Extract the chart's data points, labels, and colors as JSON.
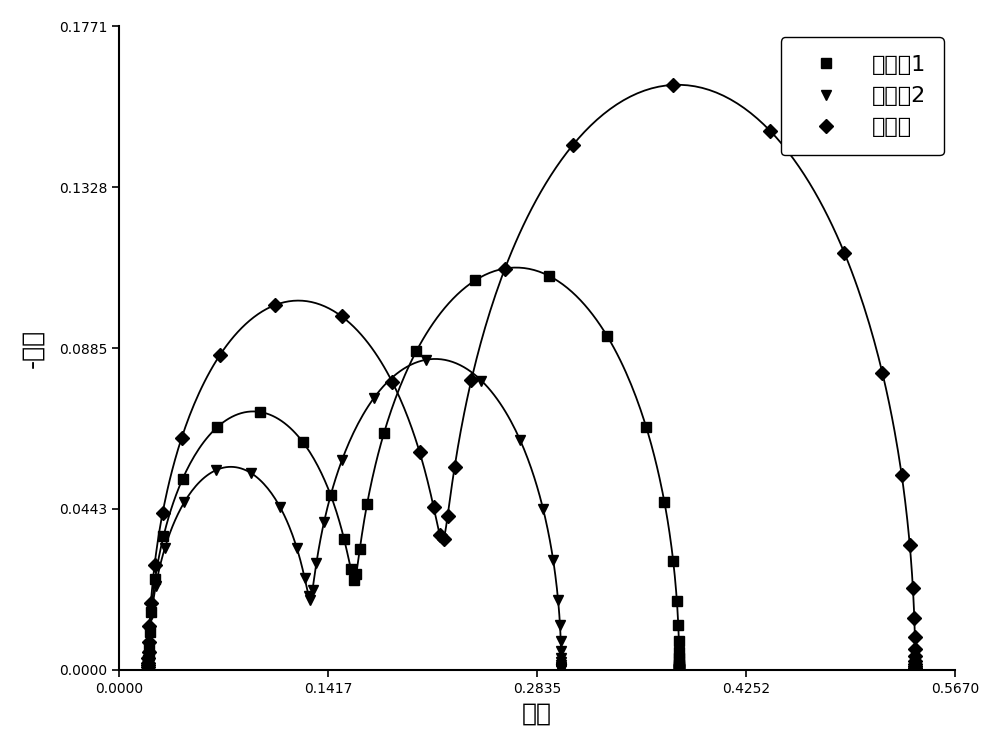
{
  "xlabel": "实部",
  "ylabel": "-虚部",
  "legend_labels": [
    "实施例1",
    "实施例2",
    "对比例"
  ],
  "line_color": "#000000",
  "marker_styles": [
    "s",
    "v",
    "D"
  ],
  "marker_size": 7,
  "marker_facecolor": "black",
  "legend_loc": "upper right",
  "font_size_labels": 18,
  "font_size_legend": 16,
  "figsize": [
    10.0,
    7.46
  ],
  "dpi": 100,
  "background_color": "#ffffff",
  "spine_linewidth": 1.5,
  "line_width": 1.3,
  "series1": {
    "r0": 0.02,
    "r1": 0.14,
    "r2": 0.22,
    "f1": 500,
    "f2": 2.5,
    "name": "实施例1"
  },
  "series2": {
    "r0": 0.02,
    "r1": 0.11,
    "r2": 0.17,
    "f1": 600,
    "f2": 3.0,
    "name": "实施例2"
  },
  "series3": {
    "r0": 0.02,
    "r1": 0.2,
    "r2": 0.32,
    "f1": 400,
    "f2": 2.0,
    "name": "对比例"
  }
}
